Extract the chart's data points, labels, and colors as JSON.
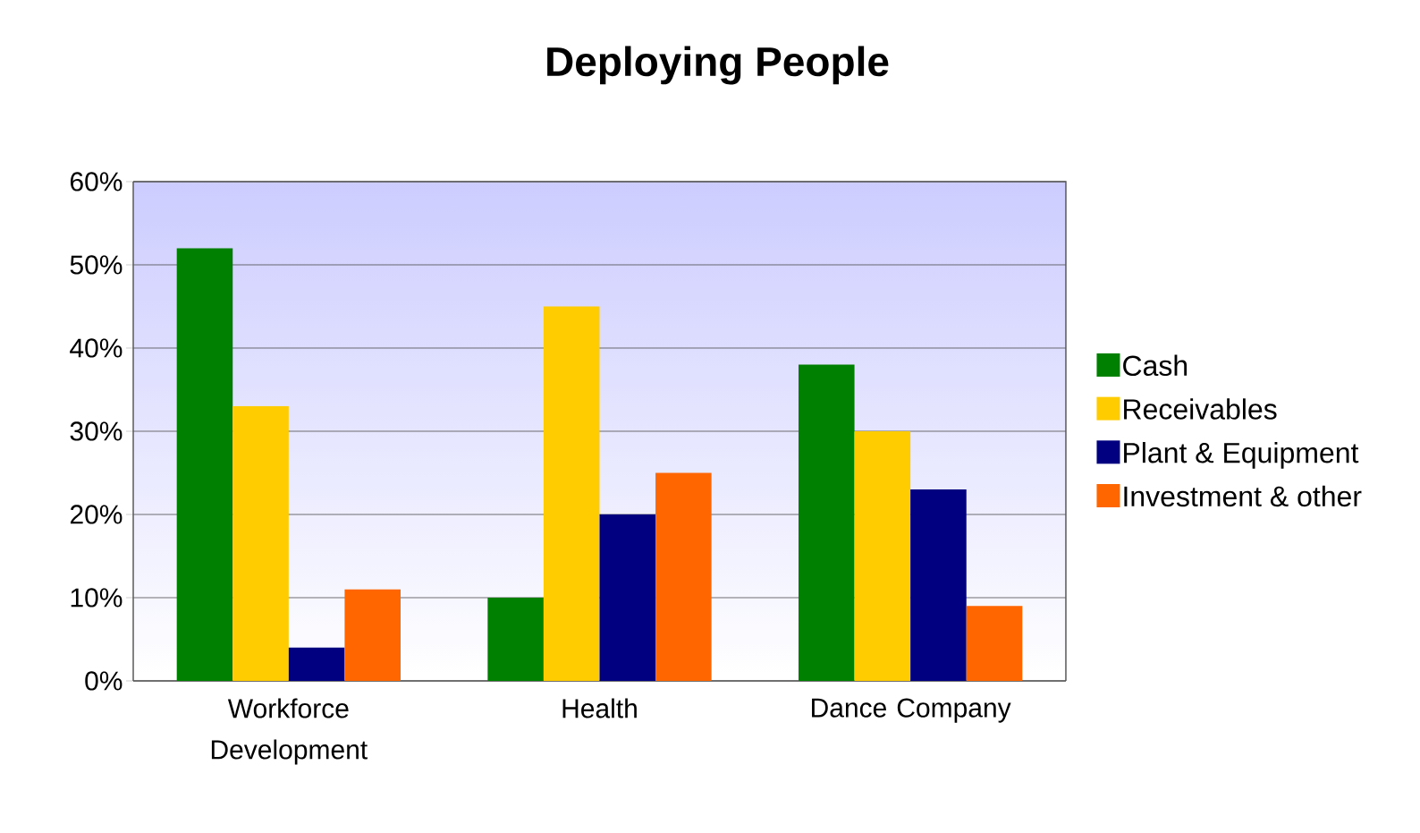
{
  "chart_data": {
    "type": "bar",
    "title": "Deploying People",
    "categories": [
      "Workforce Development",
      "Health",
      "Dance Company"
    ],
    "series": [
      {
        "name": "Cash",
        "color": "#008000",
        "values": [
          52,
          10,
          38
        ]
      },
      {
        "name": "Receivables",
        "color": "#ffcc00",
        "values": [
          33,
          45,
          30
        ]
      },
      {
        "name": "Plant & Equipment",
        "color": "#000080",
        "values": [
          4,
          20,
          23
        ]
      },
      {
        "name": "Investment & other",
        "color": "#ff6600",
        "values": [
          11,
          25,
          9
        ]
      }
    ],
    "ylim": [
      0,
      60
    ],
    "yticks": [
      {
        "value": 0,
        "label": "0%"
      },
      {
        "value": 10,
        "label": "10%"
      },
      {
        "value": 20,
        "label": "20%"
      },
      {
        "value": 30,
        "label": "30%"
      },
      {
        "value": 40,
        "label": "40%"
      },
      {
        "value": 50,
        "label": "50%"
      },
      {
        "value": 60,
        "label": "60%"
      }
    ],
    "grid": "y",
    "legend": "right"
  }
}
